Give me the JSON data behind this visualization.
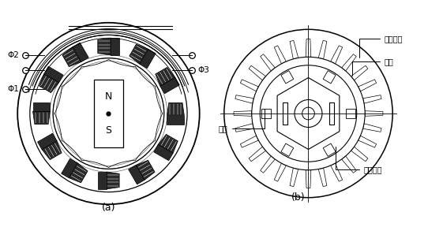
{
  "fig_width": 5.61,
  "fig_height": 2.88,
  "dpi": 100,
  "bg_color": "#ffffff",
  "line_color": "#000000",
  "label_a": "(a)",
  "label_b": "(b)",
  "phi1_label": "Φ1",
  "phi2_label": "Φ2",
  "phi3_label": "Φ3",
  "N_label": "N",
  "S_label": "S",
  "stator_coil_label": "定子线圈",
  "stator_label": "定子",
  "rotor_label": "转子",
  "magnet_label": "永久磁铁",
  "num_coils_a": 12,
  "num_teeth_b": 28
}
